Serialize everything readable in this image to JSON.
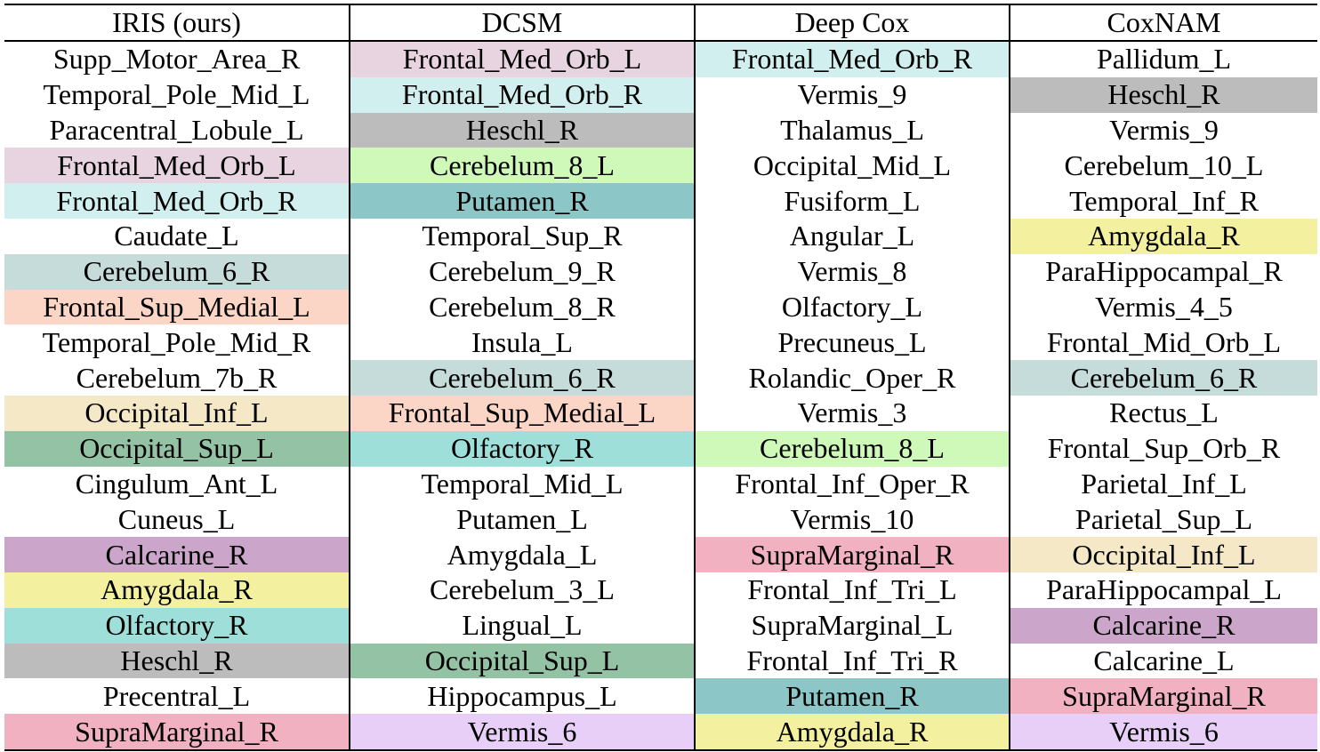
{
  "table": {
    "headers": [
      "IRIS (ours)",
      "DCSM",
      "Deep Cox",
      "CoxNAM"
    ],
    "rows": [
      [
        {
          "text": "Supp_Motor_Area_R",
          "color": ""
        },
        {
          "text": "Frontal_Med_Orb_L",
          "color": "#e8d3e0"
        },
        {
          "text": "Frontal_Med_Orb_R",
          "color": "#d2eff0"
        },
        {
          "text": "Pallidum_L",
          "color": ""
        }
      ],
      [
        {
          "text": "Temporal_Pole_Mid_L",
          "color": ""
        },
        {
          "text": "Frontal_Med_Orb_R",
          "color": "#d2eff0"
        },
        {
          "text": "Vermis_9",
          "color": ""
        },
        {
          "text": "Heschl_R",
          "color": "#bcbcbc"
        }
      ],
      [
        {
          "text": "Paracentral_Lobule_L",
          "color": ""
        },
        {
          "text": "Heschl_R",
          "color": "#bcbcbc"
        },
        {
          "text": "Thalamus_L",
          "color": ""
        },
        {
          "text": "Vermis_9",
          "color": ""
        }
      ],
      [
        {
          "text": "Frontal_Med_Orb_L",
          "color": "#e8d3e0"
        },
        {
          "text": "Cerebelum_8_L",
          "color": "#cff9b9"
        },
        {
          "text": "Occipital_Mid_L",
          "color": ""
        },
        {
          "text": "Cerebelum_10_L",
          "color": ""
        }
      ],
      [
        {
          "text": "Frontal_Med_Orb_R",
          "color": "#d2eff0"
        },
        {
          "text": "Putamen_R",
          "color": "#8dc6c6"
        },
        {
          "text": "Fusiform_L",
          "color": ""
        },
        {
          "text": "Temporal_Inf_R",
          "color": ""
        }
      ],
      [
        {
          "text": "Caudate_L",
          "color": ""
        },
        {
          "text": "Temporal_Sup_R",
          "color": ""
        },
        {
          "text": "Angular_L",
          "color": ""
        },
        {
          "text": "Amygdala_R",
          "color": "#f3f09f"
        }
      ],
      [
        {
          "text": "Cerebelum_6_R",
          "color": "#c5dcdb"
        },
        {
          "text": "Cerebelum_9_R",
          "color": ""
        },
        {
          "text": "Vermis_8",
          "color": ""
        },
        {
          "text": "ParaHippocampal_R",
          "color": ""
        }
      ],
      [
        {
          "text": "Frontal_Sup_Medial_L",
          "color": "#fbd5c6"
        },
        {
          "text": "Cerebelum_8_R",
          "color": ""
        },
        {
          "text": "Olfactory_L",
          "color": ""
        },
        {
          "text": "Vermis_4_5",
          "color": ""
        }
      ],
      [
        {
          "text": "Temporal_Pole_Mid_R",
          "color": ""
        },
        {
          "text": "Insula_L",
          "color": ""
        },
        {
          "text": "Precuneus_L",
          "color": ""
        },
        {
          "text": "Frontal_Mid_Orb_L",
          "color": ""
        }
      ],
      [
        {
          "text": "Cerebelum_7b_R",
          "color": ""
        },
        {
          "text": "Cerebelum_6_R",
          "color": "#c5dcdb"
        },
        {
          "text": "Rolandic_Oper_R",
          "color": ""
        },
        {
          "text": "Cerebelum_6_R",
          "color": "#c5dcdb"
        }
      ],
      [
        {
          "text": "Occipital_Inf_L",
          "color": "#f4e8c6"
        },
        {
          "text": "Frontal_Sup_Medial_L",
          "color": "#fbd5c6"
        },
        {
          "text": "Vermis_3",
          "color": ""
        },
        {
          "text": "Rectus_L",
          "color": ""
        }
      ],
      [
        {
          "text": "Occipital_Sup_L",
          "color": "#94c2a5"
        },
        {
          "text": "Olfactory_R",
          "color": "#9fdfda"
        },
        {
          "text": "Cerebelum_8_L",
          "color": "#cff9b9"
        },
        {
          "text": "Frontal_Sup_Orb_R",
          "color": ""
        }
      ],
      [
        {
          "text": "Cingulum_Ant_L",
          "color": ""
        },
        {
          "text": "Temporal_Mid_L",
          "color": ""
        },
        {
          "text": "Frontal_Inf_Oper_R",
          "color": ""
        },
        {
          "text": "Parietal_Inf_L",
          "color": ""
        }
      ],
      [
        {
          "text": "Cuneus_L",
          "color": ""
        },
        {
          "text": "Putamen_L",
          "color": ""
        },
        {
          "text": "Vermis_10",
          "color": ""
        },
        {
          "text": "Parietal_Sup_L",
          "color": ""
        }
      ],
      [
        {
          "text": "Calcarine_R",
          "color": "#cba6ca"
        },
        {
          "text": "Amygdala_L",
          "color": ""
        },
        {
          "text": "SupraMarginal_R",
          "color": "#f1b1c0"
        },
        {
          "text": "Occipital_Inf_L",
          "color": "#f4e8c6"
        }
      ],
      [
        {
          "text": "Amygdala_R",
          "color": "#f3f09f"
        },
        {
          "text": "Cerebelum_3_L",
          "color": ""
        },
        {
          "text": "Frontal_Inf_Tri_L",
          "color": ""
        },
        {
          "text": "ParaHippocampal_L",
          "color": ""
        }
      ],
      [
        {
          "text": "Olfactory_R",
          "color": "#9fdfda"
        },
        {
          "text": "Lingual_L",
          "color": ""
        },
        {
          "text": "SupraMarginal_L",
          "color": ""
        },
        {
          "text": "Calcarine_R",
          "color": "#cba6ca"
        }
      ],
      [
        {
          "text": "Heschl_R",
          "color": "#bcbcbc"
        },
        {
          "text": "Occipital_Sup_L",
          "color": "#94c2a5"
        },
        {
          "text": "Frontal_Inf_Tri_R",
          "color": ""
        },
        {
          "text": "Calcarine_L",
          "color": ""
        }
      ],
      [
        {
          "text": "Precentral_L",
          "color": ""
        },
        {
          "text": "Hippocampus_L",
          "color": ""
        },
        {
          "text": "Putamen_R",
          "color": "#8dc6c6"
        },
        {
          "text": "SupraMarginal_R",
          "color": "#f1b1c0"
        }
      ],
      [
        {
          "text": "SupraMarginal_R",
          "color": "#f1b1c0"
        },
        {
          "text": "Vermis_6",
          "color": "#e8cff8"
        },
        {
          "text": "Amygdala_R",
          "color": "#f3f09f"
        },
        {
          "text": "Vermis_6",
          "color": "#e8cff8"
        }
      ]
    ]
  }
}
